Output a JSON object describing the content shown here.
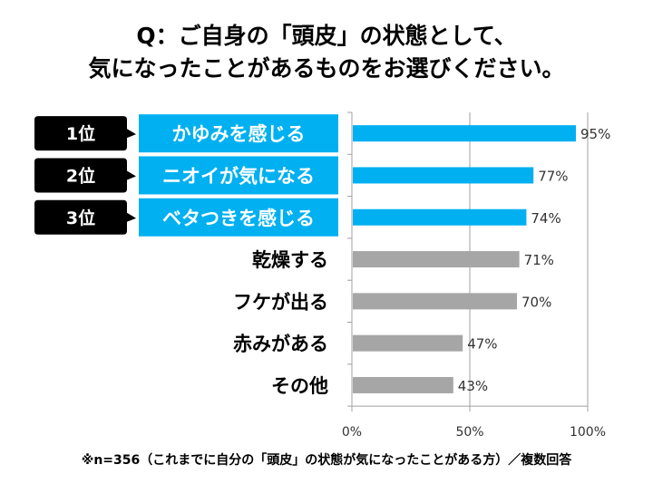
{
  "title_line1": "Q：ご自身の「頭皮」の状態として、",
  "title_line2": "気になったことがあるものをお選びください。",
  "note": "※n=356（これまでに自分の「頭皮」の状態が気になったことがある方）／複数回答",
  "colors": {
    "highlight": "#00B0F0",
    "other": "#A6A6A6",
    "rank_box": "#000000"
  },
  "chart_data": {
    "type": "bar",
    "orientation": "horizontal",
    "categories": [
      "かゆみを感じる",
      "ニオイが気になる",
      "ベタつきを感じる",
      "乾燥する",
      "フケが出る",
      "赤みがある",
      "その他"
    ],
    "values": [
      95,
      77,
      74,
      71,
      70,
      47,
      43
    ],
    "data_labels": [
      "95%",
      "77%",
      "74%",
      "71%",
      "70%",
      "47%",
      "43%"
    ],
    "ranks": [
      "1位",
      "2位",
      "3位"
    ],
    "xlim": [
      0,
      100
    ],
    "x_ticks": [
      "0%",
      "50%",
      "100%"
    ],
    "grid": true
  }
}
